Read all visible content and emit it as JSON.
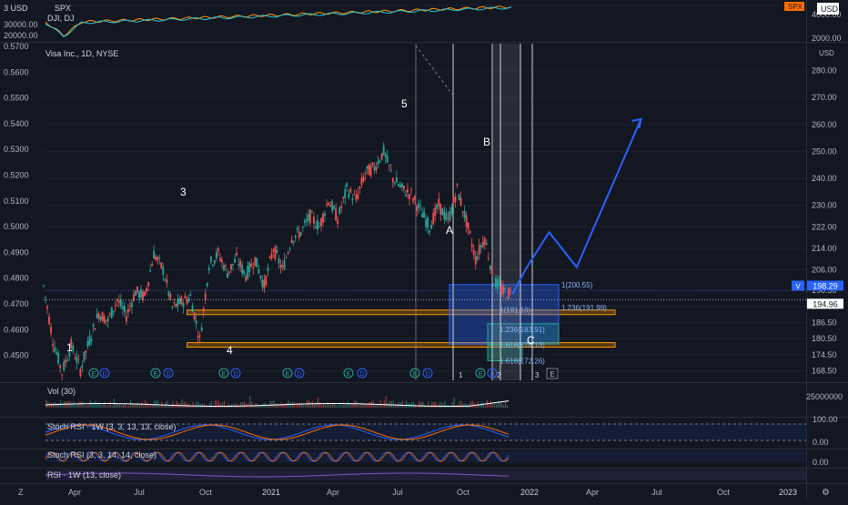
{
  "chart_data": {
    "type": "line",
    "title": "Visa Inc., 1D, NYSE",
    "currency": "USD",
    "top_pane": {
      "label_1": "3 USD",
      "label_2": "SPX",
      "label_3": "DJI, DJ",
      "left_ticks": [
        "30000.00",
        "20000.00"
      ],
      "right_ticks": [
        "4000.00",
        "2000.00"
      ],
      "right_badges": [
        {
          "text": "SPX",
          "color": "#ff6d00"
        },
        {
          "text": "USD",
          "color": "#ffffff"
        }
      ]
    },
    "left_ticks": [
      "0.5700",
      "0.5600",
      "0.5500",
      "0.5400",
      "0.5300",
      "0.5200",
      "0.5100",
      "0.5000",
      "0.4900",
      "0.4800",
      "0.4700",
      "0.4600",
      "0.4500"
    ],
    "y_ticks": [
      280.0,
      270.0,
      260.0,
      250.0,
      240.0,
      230.0,
      222.0,
      214.0,
      206.0,
      198.5,
      192.5,
      186.5,
      180.5,
      174.5,
      168.5
    ],
    "ylim": [
      165,
      290
    ],
    "price_badges": [
      {
        "label": "V",
        "value": "198.29",
        "color": "#2962ff"
      },
      {
        "label": "",
        "value": "194.96",
        "color": "#ffffff"
      }
    ],
    "x_ticks": [
      "Apr",
      "Jul",
      "Oct",
      "2021",
      "Apr",
      "Jul",
      "Oct",
      "2022",
      "Apr",
      "Jul",
      "Oct",
      "2023"
    ],
    "price_series": [
      [
        0,
        200
      ],
      [
        5,
        180
      ],
      [
        10,
        168
      ],
      [
        15,
        178
      ],
      [
        20,
        169
      ],
      [
        25,
        180
      ],
      [
        30,
        190
      ],
      [
        35,
        187
      ],
      [
        40,
        195
      ],
      [
        45,
        189
      ],
      [
        50,
        198
      ],
      [
        55,
        196
      ],
      [
        60,
        212
      ],
      [
        65,
        206
      ],
      [
        70,
        192
      ],
      [
        75,
        194
      ],
      [
        80,
        196
      ],
      [
        85,
        180
      ],
      [
        90,
        208
      ],
      [
        95,
        212
      ],
      [
        100,
        205
      ],
      [
        105,
        210
      ],
      [
        110,
        204
      ],
      [
        115,
        210
      ],
      [
        120,
        200
      ],
      [
        125,
        214
      ],
      [
        130,
        206
      ],
      [
        135,
        218
      ],
      [
        140,
        220
      ],
      [
        145,
        226
      ],
      [
        150,
        222
      ],
      [
        155,
        232
      ],
      [
        160,
        225
      ],
      [
        165,
        236
      ],
      [
        170,
        232
      ],
      [
        175,
        242
      ],
      [
        180,
        244
      ],
      [
        185,
        250
      ],
      [
        190,
        240
      ],
      [
        195,
        236
      ],
      [
        200,
        234
      ],
      [
        205,
        228
      ],
      [
        210,
        222
      ],
      [
        215,
        230
      ],
      [
        220,
        224
      ],
      [
        225,
        236
      ],
      [
        230,
        224
      ],
      [
        235,
        210
      ],
      [
        240,
        218
      ],
      [
        245,
        202
      ],
      [
        250,
        198
      ],
      [
        255,
        197
      ]
    ],
    "projection": [
      [
        255,
        197
      ],
      [
        262,
        206
      ],
      [
        275,
        220
      ],
      [
        290,
        207
      ],
      [
        325,
        262
      ]
    ],
    "wave_labels": [
      {
        "text": "1",
        "x": 8,
        "y": 173
      },
      {
        "text": "3",
        "x": 60,
        "y": 224
      },
      {
        "text": "4",
        "x": 78,
        "y": 172
      },
      {
        "text": "5",
        "x": 168,
        "y": 258
      },
      {
        "text": "A",
        "x": 190,
        "y": 210
      },
      {
        "text": "B",
        "x": 208,
        "y": 238
      },
      {
        "text": "C",
        "x": 227,
        "y": 175
      }
    ],
    "fib_levels": [
      {
        "text": "1(200.55)",
        "x": 235,
        "y": 200.55
      },
      {
        "text": "1.236(191.99)",
        "x": 235,
        "y": 191.99
      },
      {
        "text": "1(191.10)",
        "x": 218,
        "y": 191.1
      },
      {
        "text": "1.236(183.91)",
        "x": 218,
        "y": 183.91
      },
      {
        "text": "1.618(178.13)",
        "x": 218,
        "y": 178.13
      },
      {
        "text": "1.618(172.26)",
        "x": 218,
        "y": 172.26
      }
    ],
    "zones": [
      {
        "from_x": 78,
        "to_x": 315,
        "y_top": 191.1,
        "y_bottom": 190.0
      },
      {
        "from_x": 78,
        "to_x": 315,
        "y_top": 179.0,
        "y_bottom": 177.8
      }
    ],
    "events": [
      "E",
      "D",
      "E",
      "D",
      "E",
      "D",
      "E",
      "D",
      "E",
      "D",
      "E",
      "D",
      "E",
      "D"
    ],
    "vertical_markers": [
      "1",
      "2",
      "3"
    ],
    "event_E_label": "E",
    "volume": {
      "label": "Vol (30)",
      "right_tick": "25000000"
    },
    "stoch1": {
      "label": "Stoch RSI · 1W (3, 3, 13, 13, close)",
      "ticks": [
        "100.00",
        "0.00"
      ]
    },
    "stoch2": {
      "label": "Stoch RSI (3, 3, 14, 14, close)",
      "ticks": [
        "0.00"
      ]
    },
    "rsi": {
      "label": "RSI · 1W (13, close)"
    },
    "colors": {
      "up": "#26a69a",
      "down": "#ef5350",
      "projection": "#2962ff",
      "fib_box": "#2962ff",
      "zone": "#ff9800",
      "spx": "#ff9800",
      "dji": "#26c6da"
    }
  }
}
